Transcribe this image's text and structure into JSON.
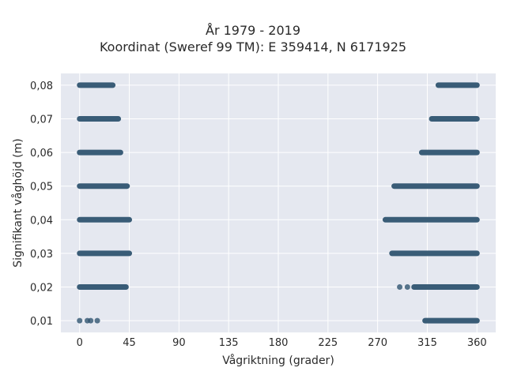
{
  "chart_data": {
    "type": "scatter",
    "title_line1": "År 1979 - 2019",
    "title_line2": "Koordinat (Sweref 99 TM): E 359414, N 6171925",
    "xlabel": "Vågriktning (grader)",
    "ylabel": "Signifikant våghöjd (m)",
    "xlim": [
      -17,
      377
    ],
    "ylim": [
      0.0065,
      0.0835
    ],
    "x_ticks": [
      0,
      45,
      90,
      135,
      180,
      225,
      270,
      315,
      360
    ],
    "x_tick_labels": [
      "0",
      "45",
      "90",
      "135",
      "180",
      "225",
      "270",
      "315",
      "360"
    ],
    "y_ticks": [
      0.01,
      0.02,
      0.03,
      0.04,
      0.05,
      0.06,
      0.07,
      0.08
    ],
    "y_tick_labels": [
      "0,01",
      "0,02",
      "0,03",
      "0,04",
      "0,05",
      "0,06",
      "0,07",
      "0,08"
    ],
    "grid": true,
    "marker_color": "#2f5470",
    "background_color": "#e5e8f0",
    "series": [
      {
        "points": [
          {
            "y": 0.08,
            "x_from": 0,
            "x_to": 30
          },
          {
            "y": 0.08,
            "x_from": 325,
            "x_to": 360
          },
          {
            "y": 0.07,
            "x_from": 0,
            "x_to": 35
          },
          {
            "y": 0.07,
            "x_from": 319,
            "x_to": 360
          },
          {
            "y": 0.06,
            "x_from": 0,
            "x_to": 37
          },
          {
            "y": 0.06,
            "x_from": 310,
            "x_to": 360
          },
          {
            "y": 0.05,
            "x_from": 0,
            "x_to": 43
          },
          {
            "y": 0.05,
            "x_from": 285,
            "x_to": 360
          },
          {
            "y": 0.04,
            "x_from": 0,
            "x_to": 45
          },
          {
            "y": 0.04,
            "x_from": 277,
            "x_to": 360
          },
          {
            "y": 0.03,
            "x_from": 0,
            "x_to": 45
          },
          {
            "y": 0.03,
            "x_from": 283,
            "x_to": 360
          },
          {
            "y": 0.02,
            "x_from": 0,
            "x_to": 42
          },
          {
            "y": 0.02,
            "x_from": 303,
            "x_to": 360
          },
          {
            "y": 0.01,
            "x_from": 313,
            "x_to": 360
          }
        ],
        "extra_points": [
          {
            "x": 0,
            "y": 0.01
          },
          {
            "x": 7,
            "y": 0.01
          },
          {
            "x": 10,
            "y": 0.01
          },
          {
            "x": 16,
            "y": 0.01
          },
          {
            "x": 290,
            "y": 0.02
          },
          {
            "x": 297,
            "y": 0.02
          }
        ]
      }
    ]
  }
}
